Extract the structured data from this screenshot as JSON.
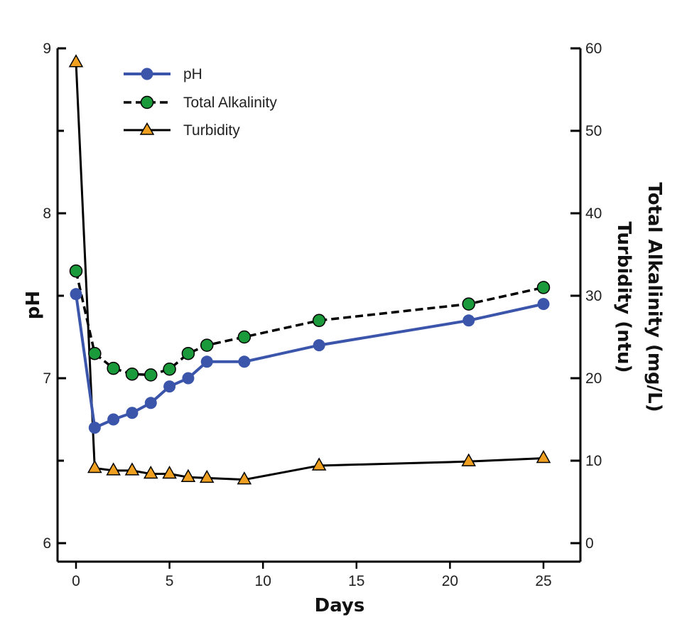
{
  "chart_data": {
    "type": "line",
    "title": "",
    "xlabel": "Days",
    "ylabel": "pH",
    "y2label_line1": "Total Alkalinity (mg/L)",
    "y2label_line2": "Turbidity (ntu)",
    "xlim": [
      -1,
      27
    ],
    "ylim": [
      5.9,
      9.0
    ],
    "y2lim": [
      -2,
      60
    ],
    "xticks": [
      0,
      5,
      10,
      15,
      20,
      25
    ],
    "yticks": [
      6,
      7,
      8,
      9
    ],
    "y2ticks": [
      0,
      10,
      20,
      30,
      40,
      50,
      60
    ],
    "legend_position": "top-left",
    "series": [
      {
        "name": "pH",
        "axis": "left",
        "color": "#3b55aa",
        "marker": "circle",
        "line_style": "solid",
        "x": [
          0,
          1,
          2,
          3,
          4,
          5,
          6,
          7,
          9,
          13,
          21,
          25
        ],
        "values": [
          7.51,
          6.7,
          6.75,
          6.79,
          6.85,
          6.95,
          7.0,
          7.1,
          7.1,
          7.2,
          7.35,
          7.45
        ]
      },
      {
        "name": "Total Alkalinity",
        "axis": "right",
        "color": "#1a9a3a",
        "marker": "circle",
        "line_style": "dashed",
        "x": [
          0,
          1,
          2,
          3,
          4,
          5,
          6,
          7,
          9,
          13,
          21,
          25
        ],
        "values": [
          33.0,
          23.0,
          21.2,
          20.5,
          20.4,
          21.1,
          23.0,
          24.0,
          25.0,
          27.0,
          29.0,
          31.0
        ]
      },
      {
        "name": "Turbidity",
        "axis": "right",
        "color": "#f0a020",
        "marker": "triangle",
        "line_style": "solid",
        "x": [
          0,
          1,
          2,
          3,
          4,
          5,
          6,
          7,
          9,
          13,
          21,
          25
        ],
        "values": [
          58.3,
          9.1,
          8.8,
          8.8,
          8.4,
          8.4,
          8.0,
          7.9,
          7.7,
          9.4,
          9.9,
          10.3
        ]
      }
    ]
  }
}
